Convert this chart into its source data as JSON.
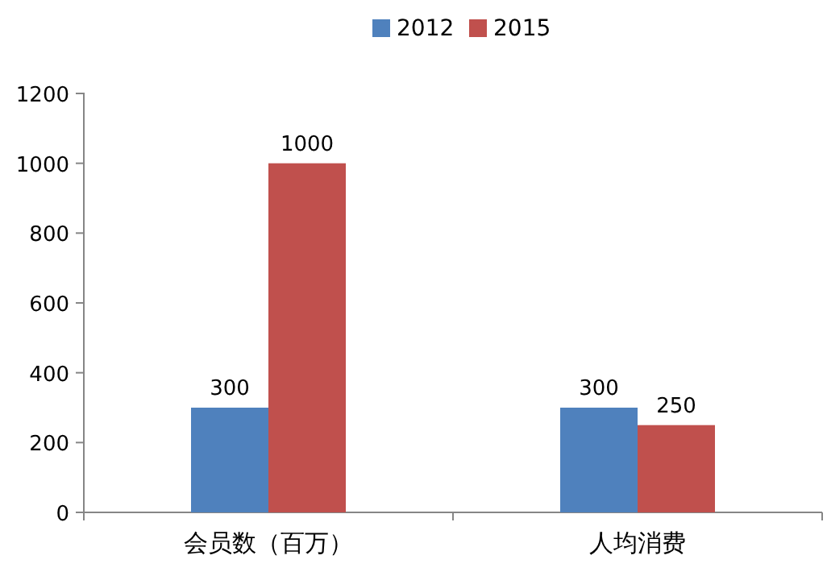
{
  "chart_data": {
    "type": "bar",
    "categories": [
      "会员数（百万）",
      "人均消费"
    ],
    "series": [
      {
        "name": "2012",
        "color": "#4f81bd",
        "values": [
          300,
          300
        ]
      },
      {
        "name": "2015",
        "color": "#c0504d",
        "values": [
          1000,
          250
        ]
      }
    ],
    "ylim": [
      0,
      1200
    ],
    "yticks": [
      0,
      200,
      400,
      600,
      800,
      1000,
      1200
    ],
    "data_labels": true,
    "legend": "top"
  }
}
